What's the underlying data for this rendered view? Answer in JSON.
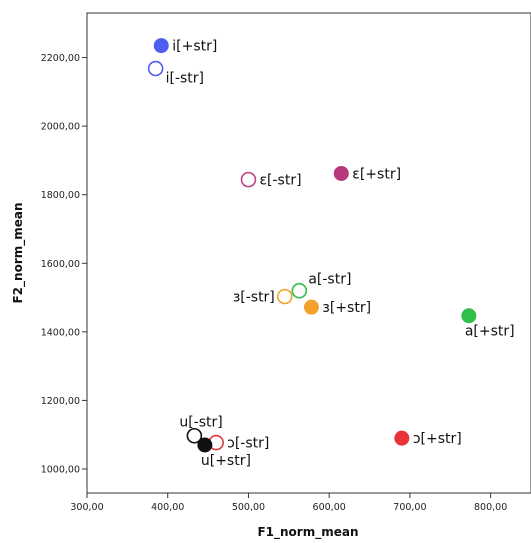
{
  "chart_data": {
    "type": "scatter",
    "xlabel": "F1_norm_mean",
    "ylabel": "F2_norm_mean",
    "xlim": [
      300,
      850
    ],
    "ylim": [
      930,
      2330
    ],
    "x_ticks": [
      300,
      400,
      500,
      600,
      700,
      800
    ],
    "x_tick_labels": [
      "300,00",
      "400,00",
      "500,00",
      "600,00",
      "700,00",
      "800,00"
    ],
    "y_ticks": [
      1000,
      1200,
      1400,
      1600,
      1800,
      2000,
      2200
    ],
    "y_tick_labels": [
      "1000,00",
      "1200,00",
      "1400,00",
      "1600,00",
      "1800,00",
      "2000,00",
      "2200,00"
    ],
    "grid": false,
    "points": [
      {
        "label": "i[+str]",
        "x": 392,
        "y": 2235,
        "filled": true,
        "color": "#4f5ff0",
        "label_pos": "right"
      },
      {
        "label": "i[-str]",
        "x": 385,
        "y": 2168,
        "filled": false,
        "color": "#4f5ff0",
        "label_pos": "right-below"
      },
      {
        "label": "ɛ[-str]",
        "x": 500,
        "y": 1844,
        "filled": false,
        "color": "#c0407a",
        "label_pos": "right"
      },
      {
        "label": "ɛ[+str]",
        "x": 615,
        "y": 1862,
        "filled": true,
        "color": "#b8377a",
        "label_pos": "right"
      },
      {
        "label": "a[-str]",
        "x": 563,
        "y": 1520,
        "filled": false,
        "color": "#2fbf4a",
        "label_pos": "right-above"
      },
      {
        "label": "ɜ[-str]",
        "x": 545,
        "y": 1503,
        "filled": false,
        "color": "#f5a22d",
        "label_pos": "left"
      },
      {
        "label": "ɜ[+str]",
        "x": 578,
        "y": 1472,
        "filled": true,
        "color": "#f5a22d",
        "label_pos": "right"
      },
      {
        "label": "a[+str]",
        "x": 773,
        "y": 1447,
        "filled": true,
        "color": "#2fbf4a",
        "label_pos": "below"
      },
      {
        "label": "u[-str]",
        "x": 433,
        "y": 1097,
        "filled": false,
        "color": "#111111",
        "label_pos": "above"
      },
      {
        "label": "ɔ[-str]",
        "x": 460,
        "y": 1077,
        "filled": false,
        "color": "#e0393e",
        "label_pos": "right"
      },
      {
        "label": "u[+str]",
        "x": 446,
        "y": 1070,
        "filled": true,
        "color": "#111111",
        "label_pos": "below"
      },
      {
        "label": "ɔ[+str]",
        "x": 690,
        "y": 1090,
        "filled": true,
        "color": "#e8333a",
        "label_pos": "right"
      }
    ]
  }
}
